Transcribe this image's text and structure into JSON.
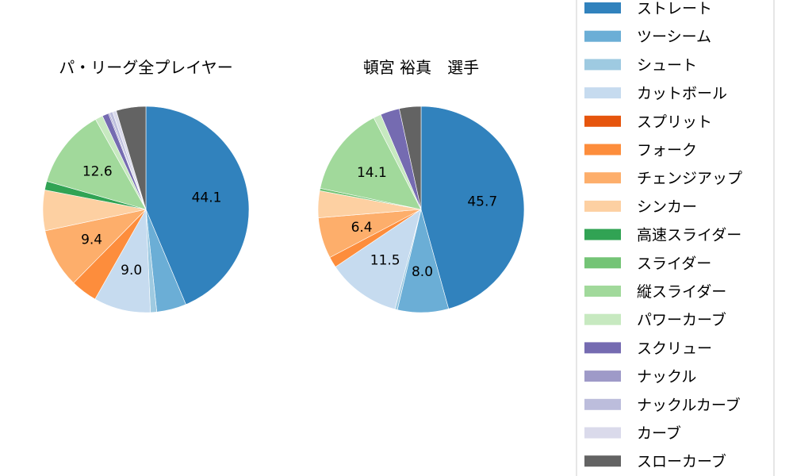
{
  "chart_data": {
    "type": "pie",
    "pies": [
      {
        "title": "パ・リーグ全プレイヤー",
        "values": [
          44.1,
          4.7,
          1.0,
          9.0,
          0.0,
          4.2,
          9.4,
          6.4,
          1.4,
          0.0,
          12.6,
          1.2,
          1.0,
          0.2,
          0.5,
          0.6,
          4.7,
          0.0
        ],
        "labels": [
          "44.1",
          "",
          "",
          "9.0",
          "",
          "",
          "9.4",
          "",
          "",
          "",
          "12.6",
          "",
          "",
          "",
          "",
          "",
          "",
          ""
        ]
      },
      {
        "title": "頓宮 裕真　選手",
        "values": [
          45.7,
          8.0,
          0.4,
          11.5,
          0.0,
          1.7,
          6.4,
          4.2,
          0.0,
          0.4,
          14.1,
          1.2,
          3.0,
          0.0,
          0.0,
          0.0,
          3.4,
          0.0
        ],
        "labels": [
          "45.7",
          "8.0",
          "",
          "11.5",
          "",
          "",
          "6.4",
          "",
          "",
          "",
          "14.1",
          "",
          "",
          "",
          "",
          "",
          "",
          ""
        ]
      }
    ],
    "legend": {
      "placement": "right",
      "entries": [
        "ストレート",
        "ツーシーム",
        "シュート",
        "カットボール",
        "スプリット",
        "フォーク",
        "チェンジアップ",
        "シンカー",
        "高速スライダー",
        "スライダー",
        "縦スライダー",
        "パワーカーブ",
        "スクリュー",
        "ナックル",
        "ナックルカーブ",
        "カーブ",
        "スローカーブ",
        "フォーク"
      ]
    },
    "colors": [
      "#3182bd",
      "#6baed6",
      "#9ecae1",
      "#c6dbef",
      "#e6550d",
      "#fd8d3c",
      "#fdae6b",
      "#fdd0a2",
      "#31a354",
      "#74c476",
      "#a1d99b",
      "#c7e9c0",
      "#756bb1",
      "#9e9ac8",
      "#bcbddc",
      "#dadaeb",
      "#636363",
      "#969696"
    ],
    "legend_visible_count": 17
  }
}
